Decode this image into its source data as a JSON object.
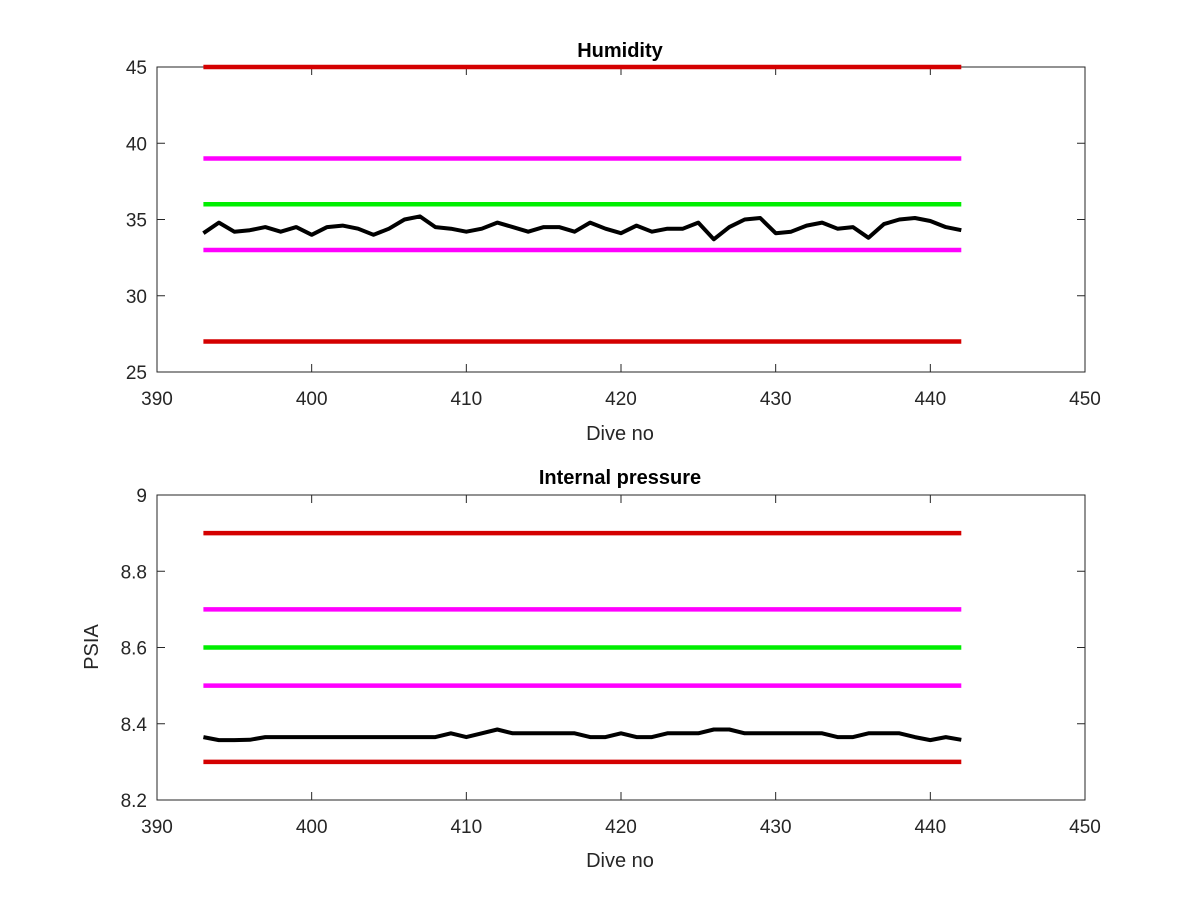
{
  "chart_data": [
    {
      "type": "line",
      "title": "Humidity",
      "xlabel": "Dive no",
      "ylabel": "",
      "xlim": [
        390,
        450
      ],
      "ylim": [
        25,
        45
      ],
      "xticks": [
        "390",
        "400",
        "410",
        "420",
        "430",
        "440",
        "450"
      ],
      "yticks": [
        "25",
        "30",
        "35",
        "40",
        "45"
      ],
      "grid": false,
      "series": [
        {
          "color": "#d40000",
          "x": [
            393,
            442
          ],
          "y": [
            45,
            45
          ]
        },
        {
          "color": "#ff00ff",
          "x": [
            393,
            442
          ],
          "y": [
            39,
            39
          ]
        },
        {
          "color": "#00ee00",
          "x": [
            393,
            442
          ],
          "y": [
            36,
            36
          ]
        },
        {
          "color": "#ff00ff",
          "x": [
            393,
            442
          ],
          "y": [
            33,
            33
          ]
        },
        {
          "color": "#d40000",
          "x": [
            393,
            442
          ],
          "y": [
            27,
            27
          ]
        },
        {
          "color": "#000000",
          "x": [
            393,
            394,
            395,
            396,
            397,
            398,
            399,
            400,
            401,
            402,
            403,
            404,
            405,
            406,
            407,
            408,
            409,
            410,
            411,
            412,
            413,
            414,
            415,
            416,
            417,
            418,
            419,
            420,
            421,
            422,
            423,
            424,
            425,
            426,
            427,
            428,
            429,
            430,
            431,
            432,
            433,
            434,
            435,
            436,
            437,
            438,
            439,
            440,
            441,
            442
          ],
          "y": [
            34.1,
            34.8,
            34.2,
            34.3,
            34.5,
            34.2,
            34.5,
            34.0,
            34.5,
            34.6,
            34.4,
            34.0,
            34.4,
            35.0,
            35.2,
            34.5,
            34.4,
            34.2,
            34.4,
            34.8,
            34.5,
            34.2,
            34.5,
            34.5,
            34.2,
            34.8,
            34.4,
            34.1,
            34.6,
            34.2,
            34.4,
            34.4,
            34.8,
            33.7,
            34.5,
            35.0,
            35.1,
            34.1,
            34.2,
            34.6,
            34.8,
            34.4,
            34.5,
            33.8,
            34.7,
            35.0,
            35.1,
            34.9,
            34.5,
            34.3
          ]
        }
      ]
    },
    {
      "type": "line",
      "title": "Internal pressure",
      "xlabel": "Dive no",
      "ylabel": "PSIA",
      "xlim": [
        390,
        450
      ],
      "ylim": [
        8.2,
        9.0
      ],
      "xticks": [
        "390",
        "400",
        "410",
        "420",
        "430",
        "440",
        "450"
      ],
      "yticks": [
        "8.2",
        "8.4",
        "8.6",
        "8.8",
        "9"
      ],
      "grid": false,
      "series": [
        {
          "color": "#d40000",
          "x": [
            393,
            442
          ],
          "y": [
            8.9,
            8.9
          ]
        },
        {
          "color": "#ff00ff",
          "x": [
            393,
            442
          ],
          "y": [
            8.7,
            8.7
          ]
        },
        {
          "color": "#00ee00",
          "x": [
            393,
            442
          ],
          "y": [
            8.6,
            8.6
          ]
        },
        {
          "color": "#ff00ff",
          "x": [
            393,
            442
          ],
          "y": [
            8.5,
            8.5
          ]
        },
        {
          "color": "#d40000",
          "x": [
            393,
            442
          ],
          "y": [
            8.3,
            8.3
          ]
        },
        {
          "color": "#000000",
          "x": [
            393,
            394,
            395,
            396,
            397,
            398,
            399,
            400,
            401,
            402,
            403,
            404,
            405,
            406,
            407,
            408,
            409,
            410,
            411,
            412,
            413,
            414,
            415,
            416,
            417,
            418,
            419,
            420,
            421,
            422,
            423,
            424,
            425,
            426,
            427,
            428,
            429,
            430,
            431,
            432,
            433,
            434,
            435,
            436,
            437,
            438,
            439,
            440,
            441,
            442
          ],
          "y": [
            8.365,
            8.357,
            8.357,
            8.358,
            8.365,
            8.365,
            8.365,
            8.365,
            8.365,
            8.365,
            8.365,
            8.365,
            8.365,
            8.365,
            8.365,
            8.365,
            8.375,
            8.365,
            8.375,
            8.385,
            8.375,
            8.375,
            8.375,
            8.375,
            8.375,
            8.365,
            8.365,
            8.375,
            8.365,
            8.365,
            8.375,
            8.375,
            8.375,
            8.385,
            8.385,
            8.375,
            8.375,
            8.375,
            8.375,
            8.375,
            8.375,
            8.365,
            8.365,
            8.375,
            8.375,
            8.375,
            8.365,
            8.357,
            8.365,
            8.358
          ]
        }
      ]
    }
  ]
}
